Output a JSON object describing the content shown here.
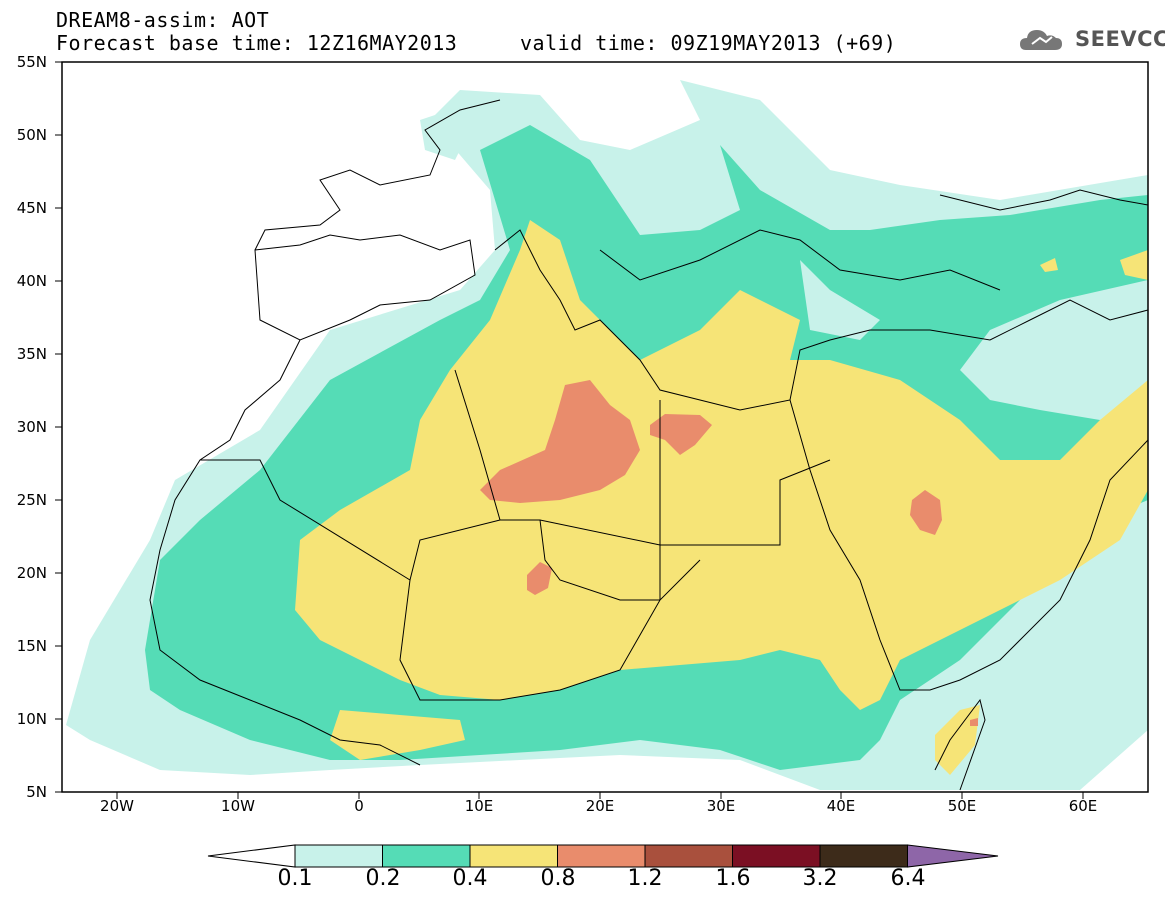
{
  "header": {
    "line1": "DREAM8-assim: AOT",
    "line2": "Forecast base time: 12Z16MAY2013     valid time: 09Z19MAY2013 (+69)",
    "logo": "SEEVCCC"
  },
  "map": {
    "variable": "AOT",
    "lon_range": [
      -25,
      65
    ],
    "lat_range": [
      5,
      55
    ],
    "lat_labels": [
      "55N",
      "50N",
      "45N",
      "40N",
      "35N",
      "30N",
      "25N",
      "20N",
      "15N",
      "10N",
      "5N"
    ],
    "lon_labels": [
      "20W",
      "10W",
      "0",
      "10E",
      "20E",
      "30E",
      "40E",
      "50E",
      "60E"
    ]
  },
  "colorbar": {
    "levels": [
      "0.1",
      "0.2",
      "0.4",
      "0.8",
      "1.2",
      "1.6",
      "3.2",
      "6.4"
    ],
    "colors": [
      "#ffffff",
      "#c8f2ea",
      "#55dcb6",
      "#f6e477",
      "#e98c6c",
      "#a9503d",
      "#7b0f23",
      "#3d2b1a",
      "#8e66a8"
    ]
  }
}
